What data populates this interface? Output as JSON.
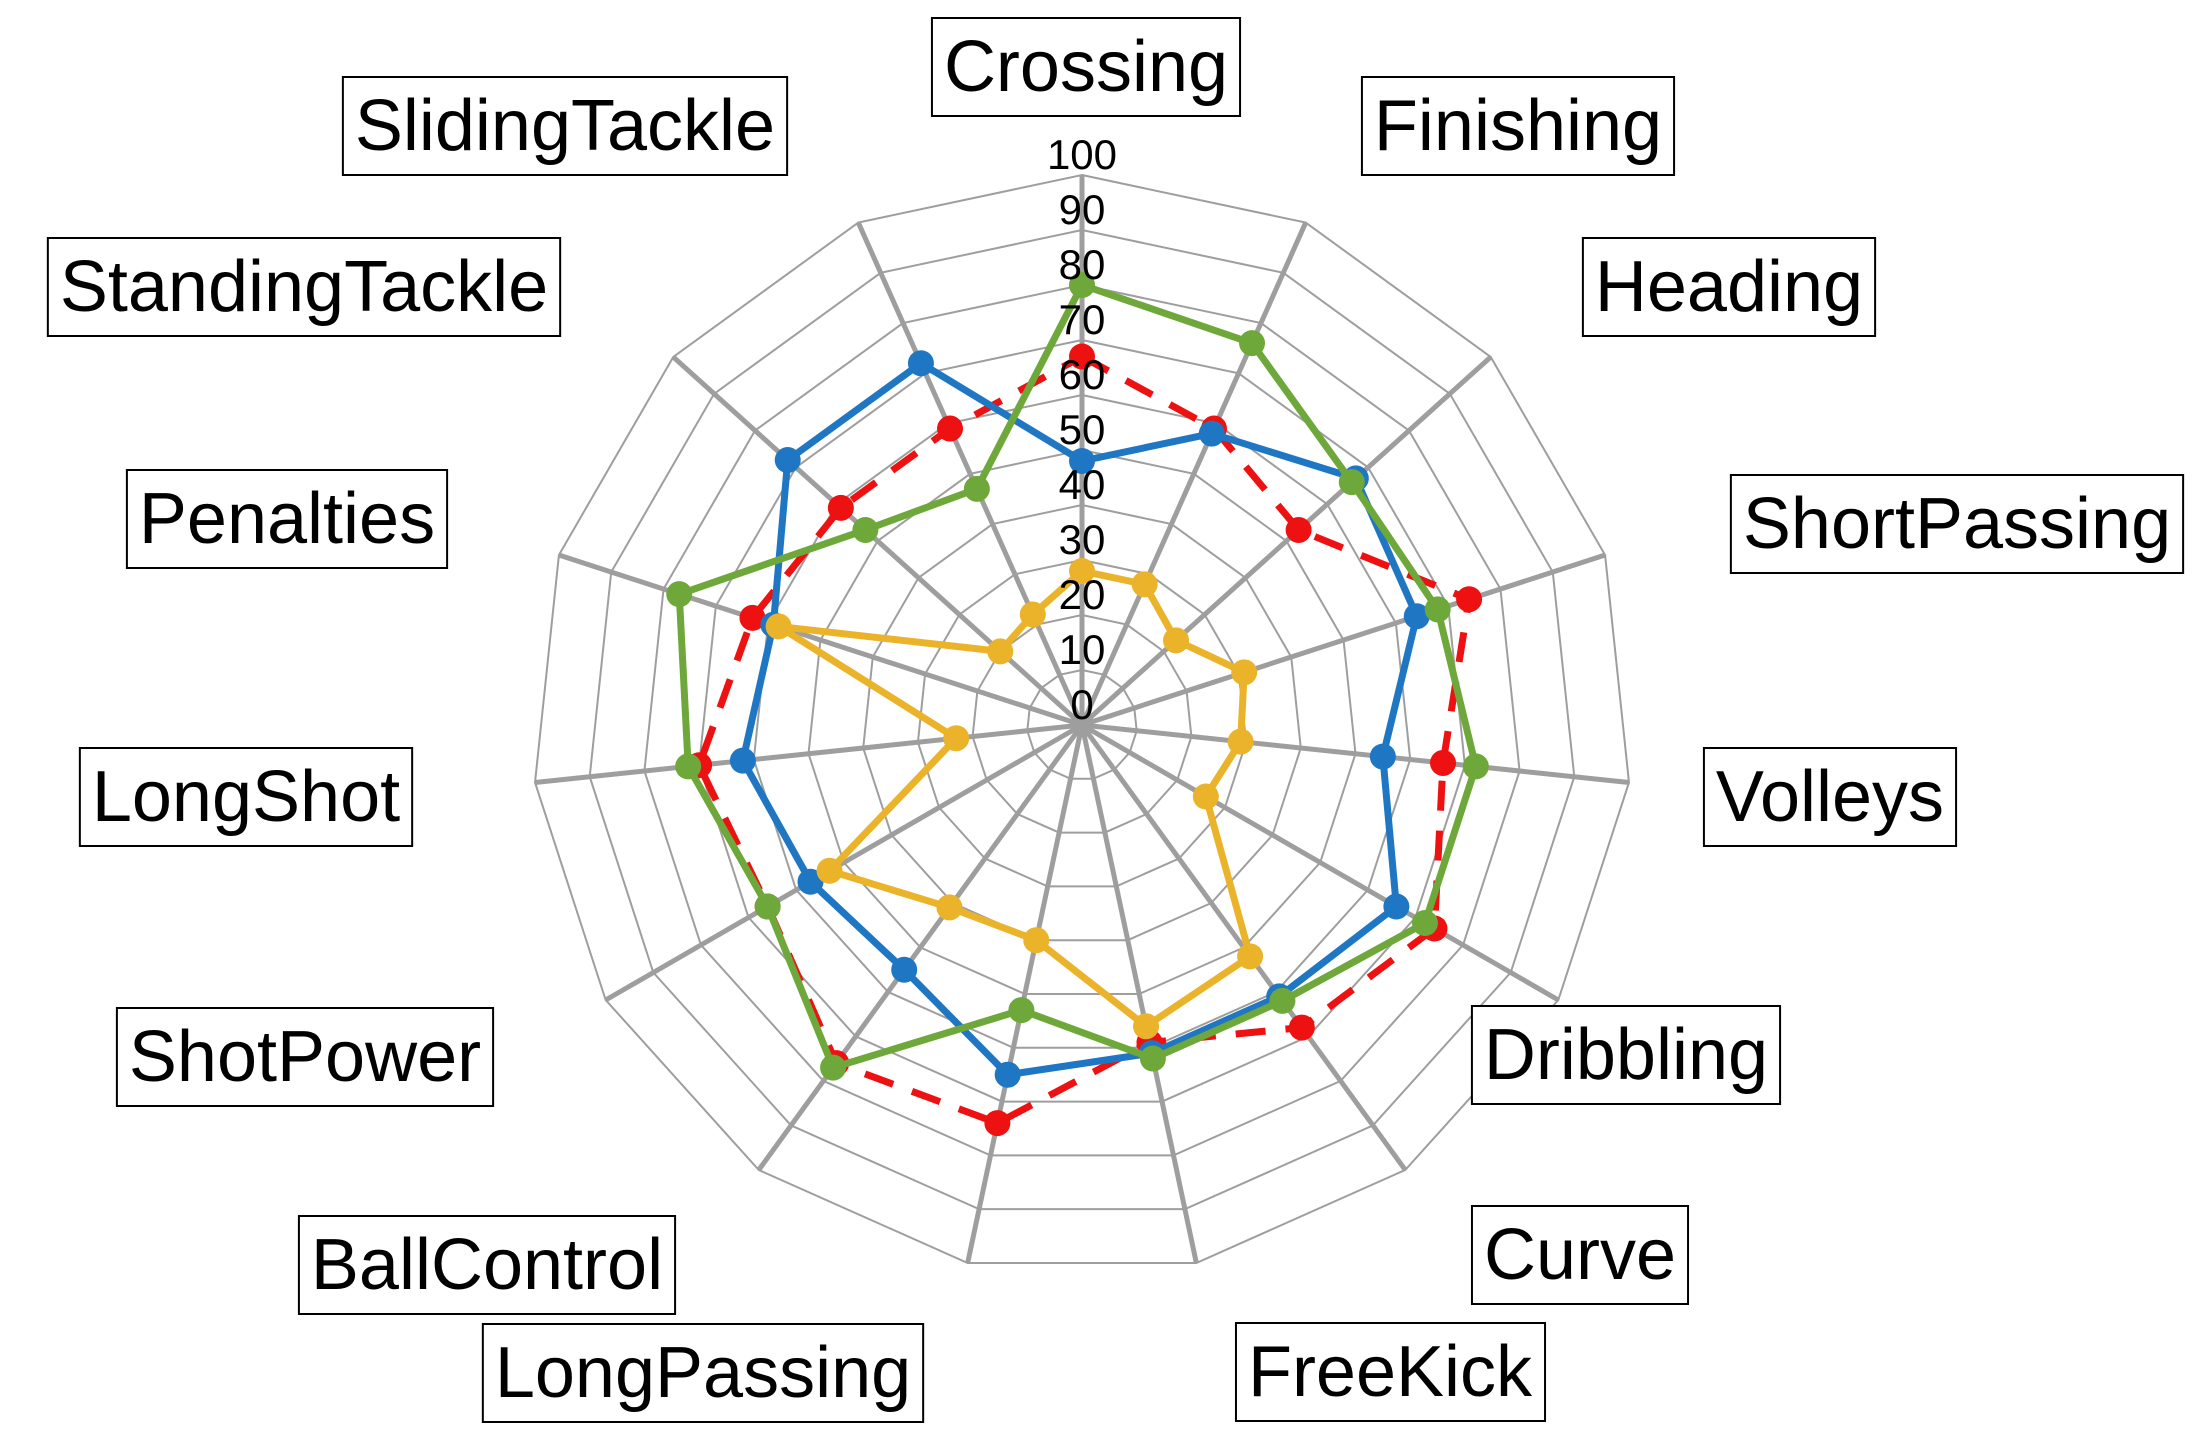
{
  "chart_data": {
    "type": "radar",
    "title": "",
    "categories": [
      "Crossing",
      "Finishing",
      "Heading",
      "ShortPassing",
      "Volleys",
      "Dribbling",
      "Curve",
      "FreeKick",
      "LongPassing",
      "BallControl",
      "ShotPower",
      "LongShot",
      "Penalties",
      "StandingTackle",
      "SlidingTackle"
    ],
    "rlim": [
      0,
      100
    ],
    "ticks": [
      "0",
      "10",
      "20",
      "30",
      "40",
      "50",
      "60",
      "70",
      "80",
      "90",
      "100"
    ],
    "legend": "none",
    "series": [
      {
        "color": "#ee1111",
        "dash": true,
        "values": [
          67,
          59,
          53,
          74,
          66,
          74,
          68,
          59,
          74,
          76,
          66,
          70,
          63,
          59,
          59
        ]
      },
      {
        "color": "#1f77c4",
        "dash": false,
        "values": [
          48,
          58,
          67,
          64,
          55,
          66,
          61,
          61,
          65,
          55,
          57,
          62,
          59,
          72,
          72
        ]
      },
      {
        "color": "#6ea83a",
        "dash": false,
        "values": [
          80,
          76,
          66,
          68,
          72,
          72,
          62,
          62,
          53,
          77,
          66,
          72,
          77,
          53,
          47
        ]
      },
      {
        "color": "#eab32a",
        "dash": false,
        "values": [
          28,
          28,
          23,
          31,
          29,
          26,
          52,
          56,
          40,
          41,
          53,
          23,
          58,
          20,
          22
        ]
      }
    ],
    "grid": true
  }
}
